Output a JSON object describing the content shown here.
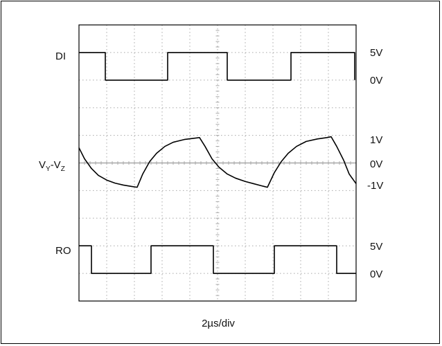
{
  "chart_data": {
    "type": "line",
    "title": "",
    "xlabel": "2µs/div",
    "ylabel": "",
    "grid": true,
    "x_divisions": 10,
    "y_divisions": 10,
    "x_unit": "div",
    "y_unit": "div",
    "xlim": [
      0,
      10
    ],
    "ylim": [
      0,
      10
    ],
    "traces": [
      {
        "name": "DI",
        "label": "DI",
        "scale_labels": [
          "5V",
          "0V"
        ],
        "scale_levels_div": [
          9,
          8
        ],
        "points": [
          [
            0,
            9
          ],
          [
            0.95,
            9
          ],
          [
            0.95,
            8
          ],
          [
            3.2,
            8
          ],
          [
            3.2,
            9
          ],
          [
            5.35,
            9
          ],
          [
            5.35,
            8
          ],
          [
            7.65,
            8
          ],
          [
            7.65,
            9
          ],
          [
            9.95,
            9
          ],
          [
            9.95,
            8
          ]
        ]
      },
      {
        "name": "VY-VZ",
        "label_main": "V",
        "label_sub1": "Y",
        "label_dash": "-V",
        "label_sub2": "Z",
        "scale_labels": [
          "1V",
          "0V",
          "-1V"
        ],
        "scale_levels_div": [
          5.9,
          5,
          4.1
        ],
        "points": [
          [
            0,
            5.55
          ],
          [
            0.2,
            5.15
          ],
          [
            0.45,
            4.8
          ],
          [
            0.7,
            4.55
          ],
          [
            1.0,
            4.38
          ],
          [
            1.3,
            4.27
          ],
          [
            1.6,
            4.2
          ],
          [
            1.9,
            4.15
          ],
          [
            2.1,
            4.12
          ],
          [
            2.3,
            4.6
          ],
          [
            2.55,
            5.05
          ],
          [
            2.8,
            5.35
          ],
          [
            3.1,
            5.6
          ],
          [
            3.4,
            5.75
          ],
          [
            3.8,
            5.85
          ],
          [
            4.2,
            5.9
          ],
          [
            4.35,
            5.92
          ],
          [
            4.55,
            5.6
          ],
          [
            4.8,
            5.15
          ],
          [
            5.05,
            4.85
          ],
          [
            5.35,
            4.6
          ],
          [
            5.65,
            4.45
          ],
          [
            6.0,
            4.33
          ],
          [
            6.3,
            4.25
          ],
          [
            6.6,
            4.17
          ],
          [
            6.8,
            4.12
          ],
          [
            7.05,
            4.65
          ],
          [
            7.3,
            5.05
          ],
          [
            7.55,
            5.35
          ],
          [
            7.85,
            5.6
          ],
          [
            8.2,
            5.78
          ],
          [
            8.6,
            5.87
          ],
          [
            8.95,
            5.92
          ],
          [
            9.1,
            5.95
          ],
          [
            9.3,
            5.6
          ],
          [
            9.55,
            5.1
          ],
          [
            9.75,
            4.6
          ],
          [
            10,
            4.25
          ]
        ]
      },
      {
        "name": "RO",
        "label": "RO",
        "scale_labels": [
          "5V",
          "0V"
        ],
        "scale_levels_div": [
          2,
          1
        ],
        "points": [
          [
            0,
            2
          ],
          [
            0.45,
            2
          ],
          [
            0.45,
            1
          ],
          [
            2.6,
            1
          ],
          [
            2.6,
            2
          ],
          [
            4.85,
            2
          ],
          [
            4.85,
            1
          ],
          [
            7.05,
            1
          ],
          [
            7.05,
            2
          ],
          [
            9.3,
            2
          ],
          [
            9.3,
            1
          ],
          [
            10,
            1
          ]
        ]
      }
    ],
    "colors": {
      "trace": "#000000",
      "grid": "#a8a8a8",
      "center_line": "#9a9a9a",
      "border": "#000000"
    }
  }
}
